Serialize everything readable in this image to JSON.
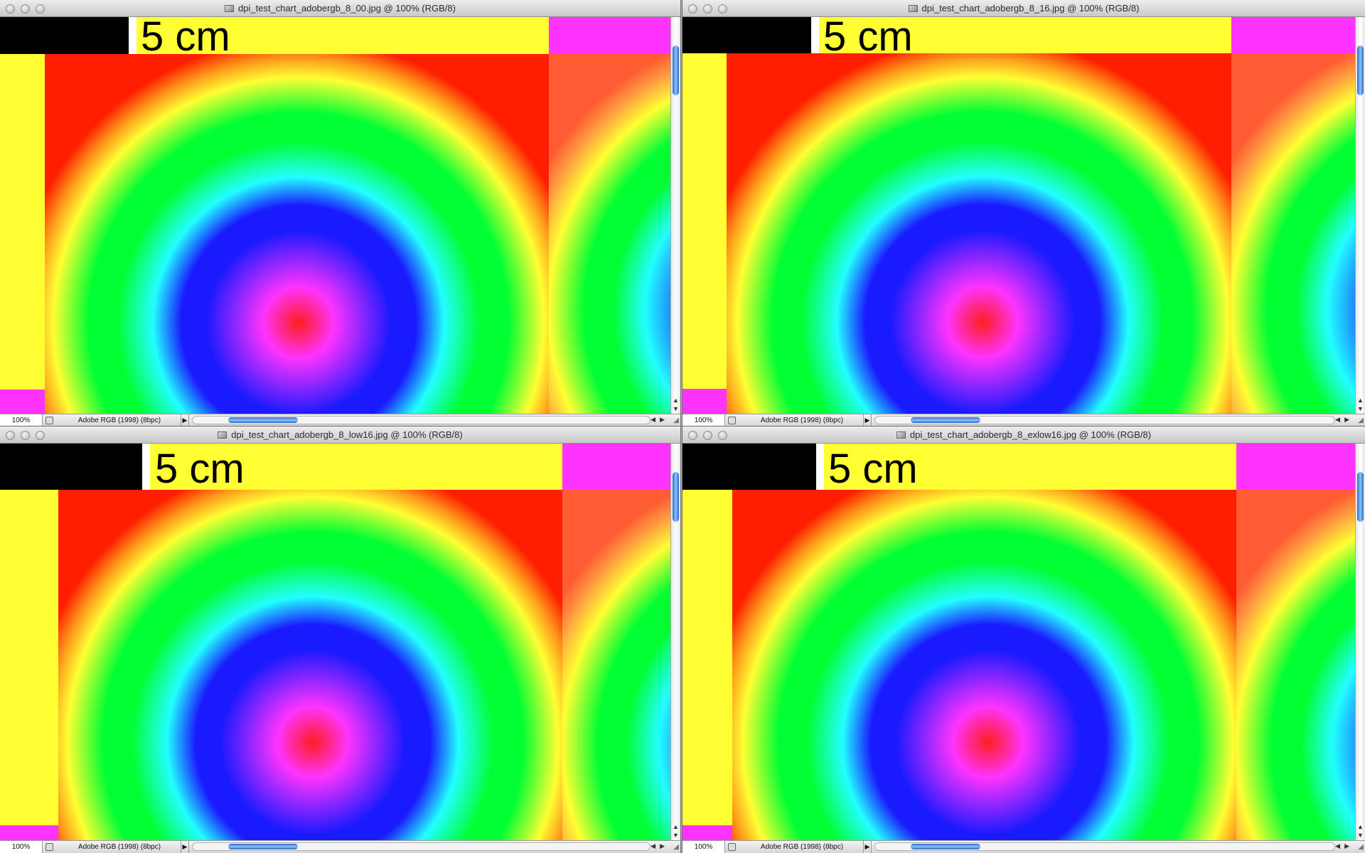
{
  "windows": [
    {
      "title": "dpi_test_chart_adobergb_8_00.jpg @ 100% (RGB/8)",
      "label": "5 cm",
      "zoom": "100%",
      "profile": "Adobe RGB (1998) (8bpc)"
    },
    {
      "title": "dpi_test_chart_adobergb_8_16.jpg @ 100% (RGB/8)",
      "label": "5 cm",
      "zoom": "100%",
      "profile": "Adobe RGB (1998) (8bpc)"
    },
    {
      "title": "dpi_test_chart_adobergb_8_low16.jpg @ 100% (RGB/8)",
      "label": "5 cm",
      "zoom": "100%",
      "profile": "Adobe RGB (1998) (8bpc)"
    },
    {
      "title": "dpi_test_chart_adobergb_8_exlow16.jpg @ 100% (RGB/8)",
      "label": "5 cm",
      "zoom": "100%",
      "profile": "Adobe RGB (1998) (8bpc)"
    }
  ],
  "icons": {
    "window_controls": "traffic-light-buttons",
    "document": "document-icon",
    "status_menu": "play-triangle-icon",
    "scroll_arrows": "arrow-icons",
    "resize": "resize-grip-icon"
  },
  "colors": {
    "red": "#ff1e00",
    "yellow": "#ffff33",
    "magenta": "#ff33ff",
    "orange": "#ff5c33",
    "scroll_thumb": "#2a67c4"
  }
}
